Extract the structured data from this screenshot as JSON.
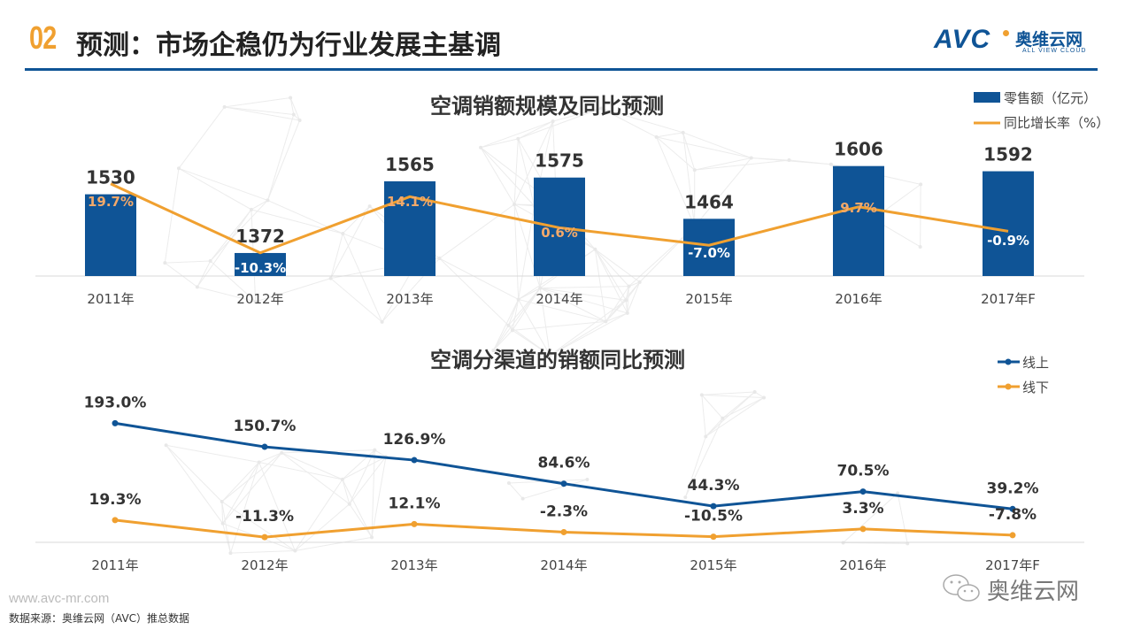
{
  "header": {
    "section_number": "02",
    "title": "预测：市场企稳仍为行业发展主基调",
    "logo_mark": "AVC",
    "logo_cn": "奥维云网",
    "logo_en": "ALL VIEW CLOUD"
  },
  "colors": {
    "brand_blue": "#0f5496",
    "accent_orange": "#f0a030",
    "pct_label_orange": "#f3a96a",
    "rule_blue": "#0f5496"
  },
  "chart_data": [
    {
      "type": "bar",
      "title": "空调销额规模及同比预测",
      "categories": [
        "2011年",
        "2012年",
        "2013年",
        "2014年",
        "2015年",
        "2016年",
        "2017年F"
      ],
      "series": [
        {
          "name": "零售额（亿元）",
          "kind": "bar",
          "values": [
            1530,
            1372,
            1565,
            1575,
            1464,
            1606,
            1592
          ]
        },
        {
          "name": "同比增长率（%）",
          "kind": "line",
          "values": [
            19.7,
            -10.3,
            14.1,
            0.6,
            -7.0,
            9.7,
            -0.9
          ]
        }
      ],
      "value_labels": [
        "1530",
        "1372",
        "1565",
        "1575",
        "1464",
        "1606",
        "1592"
      ],
      "pct_labels": [
        "19.7%",
        "-10.3%",
        "14.1%",
        "0.6%",
        "-7.0%",
        "9.7%",
        "-0.9%"
      ],
      "pct_label_colors": [
        "orange",
        "white",
        "orange",
        "orange",
        "white",
        "orange",
        "white"
      ],
      "legend": [
        "零售额（亿元）",
        "同比增长率（%）"
      ],
      "legend_position": "top-right",
      "xlabel": "",
      "ylabel": "",
      "grid": false
    },
    {
      "type": "line",
      "title": "空调分渠道的销额同比预测",
      "categories": [
        "2011年",
        "2012年",
        "2013年",
        "2014年",
        "2015年",
        "2016年",
        "2017年F"
      ],
      "series": [
        {
          "name": "线上",
          "values": [
            193.0,
            150.7,
            126.9,
            84.6,
            44.3,
            70.5,
            39.2
          ],
          "labels": [
            "193.0%",
            "150.7%",
            "126.9%",
            "84.6%",
            "44.3%",
            "70.5%",
            "39.2%"
          ]
        },
        {
          "name": "线下",
          "values": [
            19.3,
            -11.3,
            12.1,
            -2.3,
            -10.5,
            3.3,
            -7.8
          ],
          "labels": [
            "19.3%",
            "-11.3%",
            "12.1%",
            "-2.3%",
            "-10.5%",
            "3.3%",
            "-7.8%"
          ]
        }
      ],
      "legend": [
        "线上",
        "线下"
      ],
      "legend_position": "top-right",
      "xlabel": "",
      "ylabel": "",
      "grid": false
    }
  ],
  "footer": {
    "url": "www.avc-mr.com",
    "source": "数据来源：奥维云网（AVC）推总数据",
    "wechat_label": "奥维云网"
  }
}
